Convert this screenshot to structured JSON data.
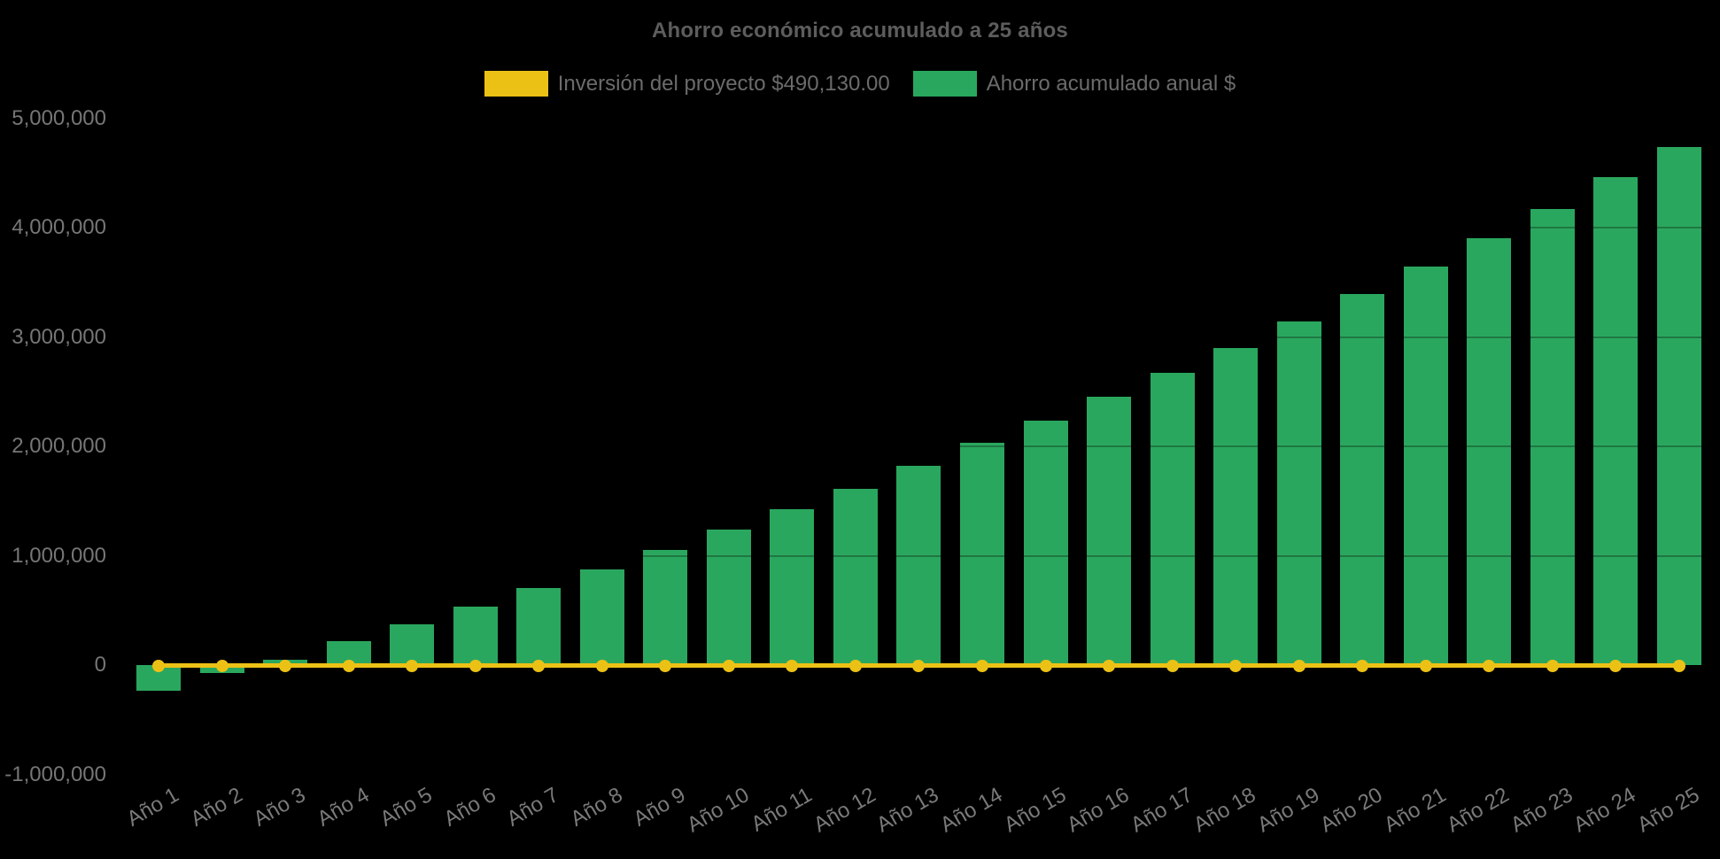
{
  "title": "Ahorro económico acumulado a 25 años",
  "legend": [
    {
      "label": "Inversión del proyecto $490,130.00",
      "color": "#ecc115",
      "series": "line"
    },
    {
      "label": "Ahorro acumulado anual $",
      "color": "#2aa75e",
      "series": "bar"
    }
  ],
  "chart_data": {
    "type": "bar",
    "title": "Ahorro económico acumulado a 25 años",
    "background": "#000000",
    "legend_position": "top",
    "grid": "faint horizontal gridlines, visible only over bars",
    "categories": [
      "Año 1",
      "Año 2",
      "Año 3",
      "Año 4",
      "Año 5",
      "Año 6",
      "Año 7",
      "Año 8",
      "Año 9",
      "Año 10",
      "Año 11",
      "Año 12",
      "Año 13",
      "Año 14",
      "Año 15",
      "Año 16",
      "Año 17",
      "Año 18",
      "Año 19",
      "Año 20",
      "Año 21",
      "Año 22",
      "Año 23",
      "Año 24",
      "Año 25"
    ],
    "series": [
      {
        "name": "Ahorro acumulado anual $",
        "type": "bar",
        "color": "#2aa75e",
        "values": [
          -235000,
          -75000,
          50000,
          220000,
          372000,
          534000,
          704000,
          875000,
          1053000,
          1240000,
          1425000,
          1610000,
          1822000,
          2030000,
          2234000,
          2453000,
          2672000,
          2899000,
          3141000,
          3392000,
          3644000,
          3905000,
          4172000,
          4461000,
          4733000
        ]
      },
      {
        "name": "Inversión del proyecto $490,130.00",
        "type": "line",
        "color": "#ecc115",
        "marker": "circle",
        "values": [
          0,
          0,
          0,
          0,
          0,
          0,
          0,
          0,
          0,
          0,
          0,
          0,
          0,
          0,
          0,
          0,
          0,
          0,
          0,
          0,
          0,
          0,
          0,
          0,
          0
        ]
      }
    ],
    "ylim": [
      -1000000,
      5000000
    ],
    "yticks": [
      5000000,
      4000000,
      3000000,
      2000000,
      1000000,
      0,
      -1000000
    ],
    "ytick_labels": [
      "5,000,000",
      "4,000,000",
      "3,000,000",
      "2,000,000",
      "1,000,000",
      "0",
      "-1,000,000"
    ],
    "xtick_rotation_deg": -30
  }
}
